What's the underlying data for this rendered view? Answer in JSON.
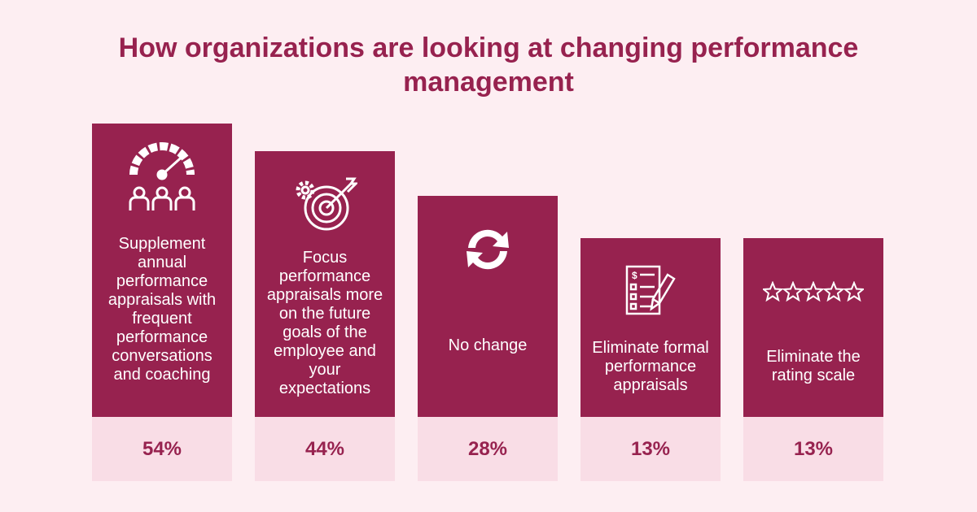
{
  "chart_data": {
    "type": "bar",
    "title": "How organizations are looking at changing performance management",
    "categories": [
      "Supplement annual performance appraisals with frequent performance conversations and coaching",
      "Focus performance appraisals more on the future goals of the employee and your expectations",
      "No change",
      "Eliminate formal performance appraisals",
      "Eliminate the rating scale"
    ],
    "values": [
      54,
      44,
      28,
      13,
      13
    ],
    "value_labels": [
      "54%",
      "44%",
      "28%",
      "13%",
      "13%"
    ],
    "color": "#97224f"
  }
}
